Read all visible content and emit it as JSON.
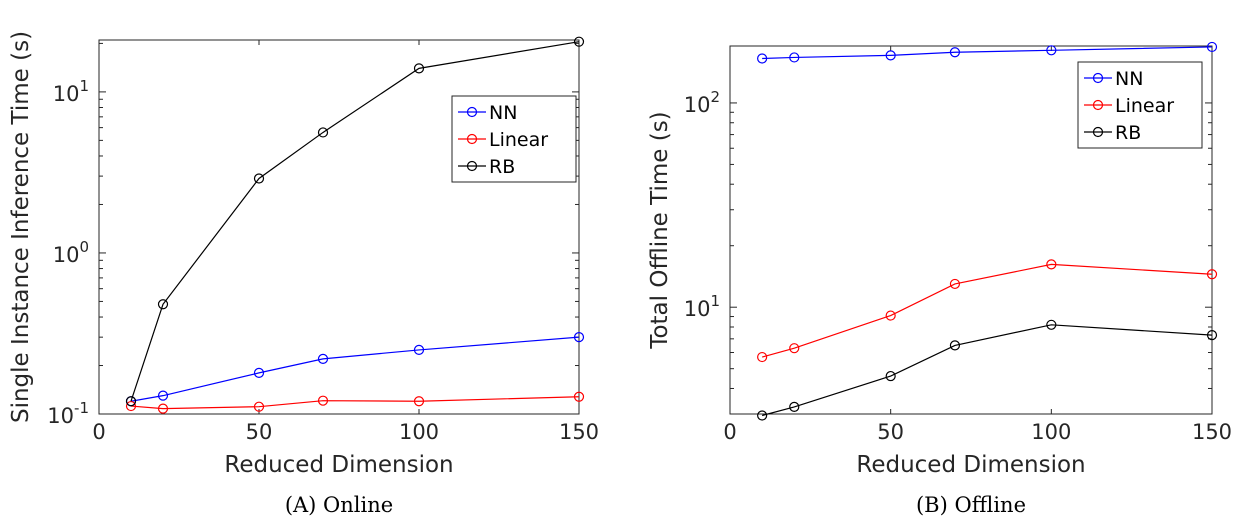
{
  "chart_data": [
    {
      "type": "line",
      "caption_label": "(A)",
      "caption_text": "Online",
      "xlabel": "Reduced Dimension",
      "ylabel": "Single Instance Inference Time (s)",
      "xlim": [
        0,
        150
      ],
      "ylim": [
        0.1,
        21
      ],
      "yscale": "log",
      "xticks": [
        "0",
        "50",
        "100",
        "150"
      ],
      "yticks": [
        {
          "base": "10",
          "exp": "-1"
        },
        {
          "base": "10",
          "exp": "0"
        },
        {
          "base": "10",
          "exp": "1"
        }
      ],
      "legend_position": "upper-right",
      "x": [
        10,
        20,
        50,
        70,
        100,
        150
      ],
      "series": [
        {
          "name": "NN",
          "color": "#0000ff",
          "values": [
            0.12,
            0.13,
            0.18,
            0.22,
            0.25,
            0.3
          ]
        },
        {
          "name": "Linear",
          "color": "#ff0000",
          "values": [
            0.112,
            0.108,
            0.111,
            0.121,
            0.12,
            0.128
          ]
        },
        {
          "name": "RB",
          "color": "#000000",
          "values": [
            0.12,
            0.48,
            2.9,
            5.6,
            14.0,
            20.5
          ]
        }
      ]
    },
    {
      "type": "line",
      "caption_label": "(B)",
      "caption_text": "Offline",
      "xlabel": "Reduced Dimension",
      "ylabel": "Total Offline Time (s)",
      "xlim": [
        0,
        150
      ],
      "ylim": [
        3,
        190
      ],
      "yscale": "log",
      "xticks": [
        "0",
        "50",
        "100",
        "150"
      ],
      "yticks": [
        {
          "base": "10",
          "exp": "1"
        },
        {
          "base": "10",
          "exp": "2"
        }
      ],
      "legend_position": "upper-right",
      "x": [
        10,
        20,
        50,
        70,
        100,
        150
      ],
      "series": [
        {
          "name": "NN",
          "color": "#0000ff",
          "values": [
            165,
            167,
            171,
            177,
            181,
            188
          ]
        },
        {
          "name": "Linear",
          "color": "#ff0000",
          "values": [
            5.7,
            6.3,
            9.1,
            13.0,
            16.2,
            14.5
          ]
        },
        {
          "name": "RB",
          "color": "#000000",
          "values": [
            2.95,
            3.25,
            4.6,
            6.5,
            8.2,
            7.3
          ]
        }
      ]
    }
  ]
}
